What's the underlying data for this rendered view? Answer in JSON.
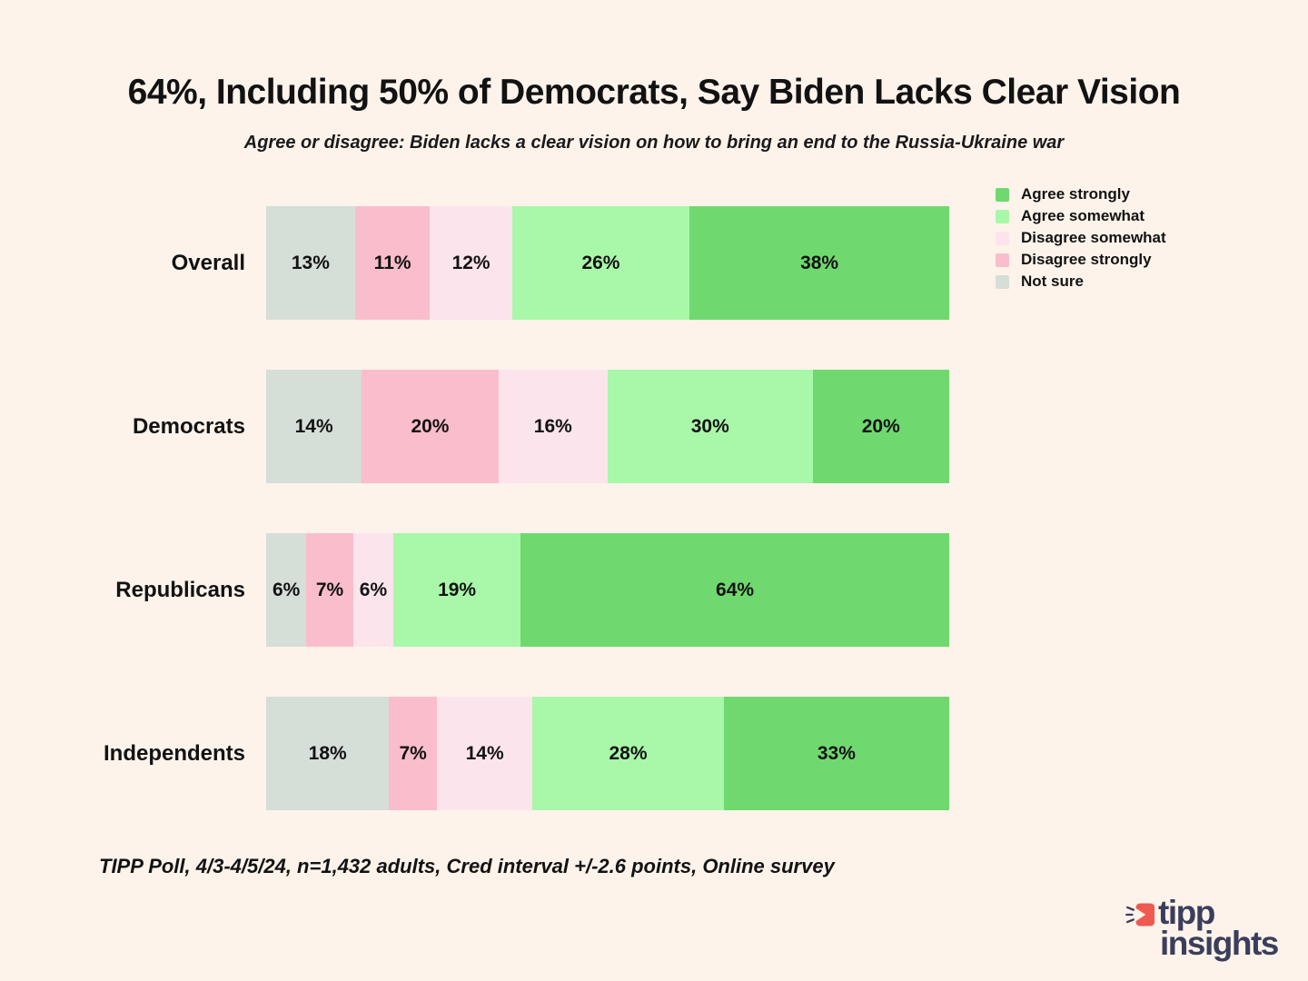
{
  "page": {
    "background_color": "#FDF3EB"
  },
  "header": {
    "title": "64%, Including 50% of Democrats, Say Biden Lacks Clear Vision",
    "subtitle": "Agree or disagree:  Biden lacks a clear vision on how to bring an end to the Russia-Ukraine war"
  },
  "chart_data": {
    "type": "bar",
    "orientation": "horizontal",
    "stacked": true,
    "title": "64%, Including 50% of Democrats, Say Biden Lacks Clear Vision",
    "subtitle": "Agree or disagree:  Biden lacks a clear vision on how to bring an end to the Russia-Ukraine war",
    "categories": [
      "Overall",
      "Democrats",
      "Republicans",
      "Independents"
    ],
    "series": [
      {
        "name": "Not sure",
        "color": "#D5DED7",
        "values": [
          13,
          14,
          6,
          18
        ]
      },
      {
        "name": "Disagree strongly",
        "color": "#FABDCB",
        "values": [
          11,
          20,
          7,
          7
        ]
      },
      {
        "name": "Disagree somewhat",
        "color": "#FCE4ED",
        "values": [
          12,
          16,
          6,
          14
        ]
      },
      {
        "name": "Agree somewhat",
        "color": "#A9F7A9",
        "values": [
          26,
          30,
          19,
          28
        ]
      },
      {
        "name": "Agree strongly",
        "color": "#6FD96F",
        "values": [
          38,
          20,
          64,
          33
        ]
      }
    ],
    "value_suffix": "%",
    "xlim": [
      0,
      100
    ],
    "grid": false,
    "legend_position": "top-right",
    "legend": [
      {
        "label": "Agree strongly",
        "color": "#6FD96F"
      },
      {
        "label": "Agree somewhat",
        "color": "#A9F7A9"
      },
      {
        "label": "Disagree somewhat",
        "color": "#FCE4ED"
      },
      {
        "label": "Disagree strongly",
        "color": "#FABDCB"
      },
      {
        "label": "Not sure",
        "color": "#D5DED7"
      }
    ]
  },
  "footnote": "TIPP Poll, 4/3-4/5/24, n=1,432 adults, Cred interval +/-2.6 points, Online survey",
  "logo": {
    "line1": "tipp",
    "line2": "insights",
    "icon_color": "#EE5A50",
    "text_color": "#3B3E5B"
  }
}
